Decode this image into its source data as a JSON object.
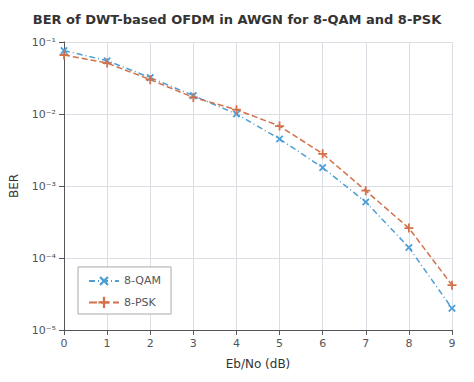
{
  "chart_data": {
    "type": "line",
    "title": "BER of DWT-based OFDM in AWGN for 8-QAM and 8-PSK",
    "xlabel": "Eb/No (dB)",
    "ylabel": "BER",
    "log": "y",
    "grid": true,
    "legend": "lower left",
    "xlim": [
      0,
      9
    ],
    "xticks": [
      0,
      1,
      2,
      3,
      4,
      5,
      6,
      7,
      8,
      9
    ],
    "ylim": [
      1e-05,
      0.1
    ],
    "yticks": [
      {
        "value": 1e-05,
        "label": "10⁻⁵"
      },
      {
        "value": 0.0001,
        "label": "10⁻⁴"
      },
      {
        "value": 0.001,
        "label": "10⁻³"
      },
      {
        "value": 0.01,
        "label": "10⁻²"
      },
      {
        "value": 0.1,
        "label": "10⁻¹"
      }
    ],
    "x": [
      0,
      1,
      2,
      3,
      4,
      5,
      6,
      7,
      8,
      9
    ],
    "series": [
      {
        "name": "8-QAM",
        "color": "#4D9FD6",
        "marker": "x",
        "line_style": "dashdot",
        "values": [
          0.076,
          0.055,
          0.032,
          0.018,
          0.01,
          0.0045,
          0.0018,
          0.0006,
          0.00014,
          2e-05
        ]
      },
      {
        "name": "8-PSK",
        "color": "#D4714A",
        "marker": "plus",
        "line_style": "dashed",
        "values": [
          0.066,
          0.051,
          0.03,
          0.017,
          0.0115,
          0.0068,
          0.0028,
          0.00086,
          0.00026,
          4.2e-05
        ]
      }
    ]
  }
}
